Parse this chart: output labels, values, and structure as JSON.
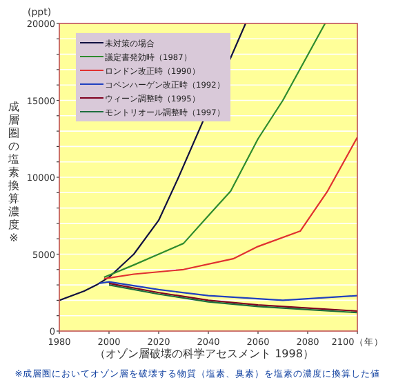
{
  "chart_data": {
    "type": "line",
    "ylabel": "成層圏の塩素換算濃度※",
    "annotations": [
      "(ppt)",
      "（オゾン層破壊の科学アセスメント 1998）",
      "※成層圏においてオゾン層を破壊する物質（塩素、臭素）を塩素の濃度に換算した値"
    ],
    "xlim": [
      1980,
      2100
    ],
    "ylim": [
      0,
      20000
    ],
    "xticks": [
      1980,
      2000,
      2020,
      2040,
      2060,
      2080,
      {
        "value": 2100,
        "label": "2100（年）"
      }
    ],
    "yticks": [
      0,
      {
        "value": 1000,
        "label": null
      },
      {
        "value": 2000,
        "label": null
      },
      {
        "value": 3000,
        "label": null
      },
      {
        "value": 4000,
        "label": null
      },
      5000,
      {
        "value": 6000,
        "label": null
      },
      {
        "value": 7000,
        "label": null
      },
      {
        "value": 8000,
        "label": null
      },
      {
        "value": 9000,
        "label": null
      },
      10000,
      {
        "value": 11000,
        "label": null
      },
      {
        "value": 12000,
        "label": null
      },
      {
        "value": 13000,
        "label": null
      },
      {
        "value": 14000,
        "label": null
      },
      15000,
      {
        "value": 16000,
        "label": null
      },
      {
        "value": 17000,
        "label": null
      },
      {
        "value": 18000,
        "label": null
      },
      {
        "value": 19000,
        "label": null
      },
      20000
    ],
    "grid": "y",
    "legend": "top left",
    "series": [
      {
        "name": "未対策の場合",
        "color": "#101040",
        "x": [
          1980,
          1990,
          1995,
          2000,
          2010,
          2020,
          2028,
          2055
        ],
        "values": [
          2000,
          2600,
          3000,
          3500,
          5000,
          7200,
          10000,
          20000
        ]
      },
      {
        "name": "議定書発効時（1987）",
        "color": "#2e8b2e",
        "x": [
          1998,
          2010,
          2020,
          2030,
          2040,
          2049,
          2060,
          2070,
          2087
        ],
        "values": [
          3500,
          4300,
          5000,
          5700,
          7500,
          9100,
          12500,
          15000,
          20000
        ]
      },
      {
        "name": "ロンドン改正時（1990）",
        "color": "#e03030",
        "x": [
          1998,
          2010,
          2030,
          2050,
          2060,
          2077,
          2088,
          2100
        ],
        "values": [
          3400,
          3700,
          4000,
          4700,
          5500,
          6500,
          9100,
          12600
        ]
      },
      {
        "name": "コペンハーゲン改正時（1992）",
        "color": "#2040c0",
        "x": [
          1996,
          2000,
          2020,
          2040,
          2060,
          2070,
          2080,
          2100
        ],
        "values": [
          3100,
          3200,
          2700,
          2300,
          2100,
          2000,
          2100,
          2300
        ]
      },
      {
        "name": "ウィーン調整時（1995）",
        "color": "#800020",
        "x": [
          2000,
          2020,
          2040,
          2060,
          2080,
          2100
        ],
        "values": [
          3100,
          2500,
          2000,
          1700,
          1500,
          1300
        ]
      },
      {
        "name": "モントリオール調整時（1997）",
        "color": "#1e6e3e",
        "x": [
          2000,
          2020,
          2040,
          2060,
          2080,
          2100
        ],
        "values": [
          3000,
          2400,
          1900,
          1600,
          1400,
          1200
        ]
      }
    ]
  }
}
